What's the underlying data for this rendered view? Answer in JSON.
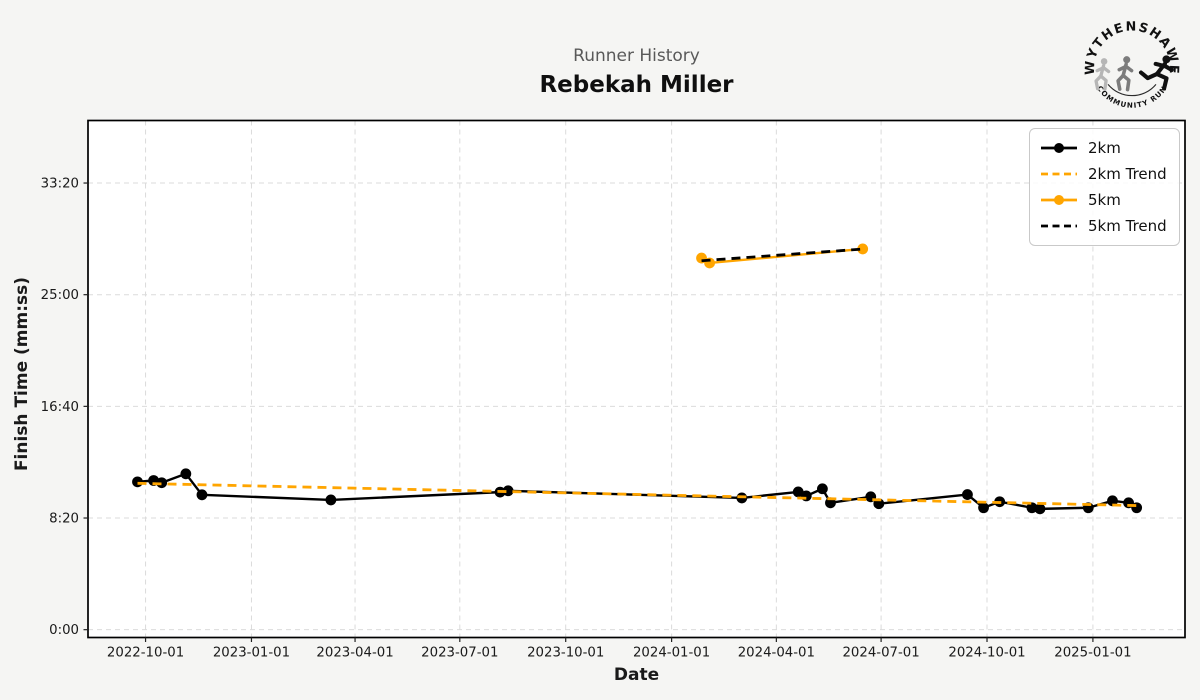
{
  "header": {
    "suptitle": "Runner History",
    "runner_name": "Rebekah Miller"
  },
  "logo": {
    "top_text": "WYTHENSHAWE",
    "bottom_text": "COMMUNITY RUN"
  },
  "colors": {
    "figure_bg": "#f5f5f3",
    "plot_bg": "#ffffff",
    "grid": "#dbdbdb",
    "spine": "#000000",
    "orange": "#FFA500",
    "black": "#000000",
    "suptitle_gray": "#595959"
  },
  "legend": {
    "items": [
      {
        "label": "2km",
        "color": "#000000",
        "dashed": false,
        "marker": true
      },
      {
        "label": "2km Trend",
        "color": "#FFA500",
        "dashed": true,
        "marker": false
      },
      {
        "label": "5km",
        "color": "#FFA500",
        "dashed": false,
        "marker": true
      },
      {
        "label": "5km Trend",
        "color": "#000000",
        "dashed": true,
        "marker": false
      }
    ]
  },
  "chart_data": {
    "type": "line",
    "title": "Runner History",
    "subtitle": "Rebekah Miller",
    "xlabel": "Date",
    "ylabel": "Finish Time (mm:ss)",
    "grid": true,
    "legend_position": "upper right",
    "xlim": [
      "2022-08-12",
      "2025-03-22"
    ],
    "ylim_seconds": [
      -35,
      2280
    ],
    "x_tick_labels": [
      "2022-10-01",
      "2023-01-01",
      "2023-04-01",
      "2023-07-01",
      "2023-10-01",
      "2024-01-01",
      "2024-04-01",
      "2024-07-01",
      "2024-10-01",
      "2025-01-01"
    ],
    "y_tick_seconds": [
      0,
      500,
      1000,
      1500,
      2000
    ],
    "y_tick_labels": [
      "0:00",
      "8:20",
      "16:40",
      "25:00",
      "33:20"
    ],
    "series": [
      {
        "name": "2km",
        "color": "#000000",
        "line": "solid",
        "marker": "circle",
        "points": [
          {
            "date": "2022-09-24",
            "time": "11:02"
          },
          {
            "date": "2022-10-08",
            "time": "11:08"
          },
          {
            "date": "2022-10-15",
            "time": "10:58"
          },
          {
            "date": "2022-11-05",
            "time": "11:38"
          },
          {
            "date": "2022-11-19",
            "time": "10:04"
          },
          {
            "date": "2023-03-11",
            "time": "9:41"
          },
          {
            "date": "2023-08-05",
            "time": "10:16"
          },
          {
            "date": "2023-08-12",
            "time": "10:22"
          },
          {
            "date": "2024-03-02",
            "time": "9:50"
          },
          {
            "date": "2024-04-20",
            "time": "10:17"
          },
          {
            "date": "2024-04-27",
            "time": "9:59"
          },
          {
            "date": "2024-05-11",
            "time": "10:31"
          },
          {
            "date": "2024-05-18",
            "time": "9:28"
          },
          {
            "date": "2024-06-22",
            "time": "9:55"
          },
          {
            "date": "2024-06-29",
            "time": "9:24"
          },
          {
            "date": "2024-09-14",
            "time": "10:05"
          },
          {
            "date": "2024-09-28",
            "time": "9:06"
          },
          {
            "date": "2024-10-12",
            "time": "9:33"
          },
          {
            "date": "2024-11-09",
            "time": "9:06"
          },
          {
            "date": "2024-11-16",
            "time": "9:01"
          },
          {
            "date": "2024-12-28",
            "time": "9:06"
          },
          {
            "date": "2025-01-18",
            "time": "9:37"
          },
          {
            "date": "2025-02-01",
            "time": "9:28"
          },
          {
            "date": "2025-02-08",
            "time": "9:06"
          }
        ]
      },
      {
        "name": "5km",
        "color": "#FFA500",
        "line": "solid",
        "marker": "circle",
        "points": [
          {
            "date": "2024-01-27",
            "time": "27:44"
          },
          {
            "date": "2024-02-03",
            "time": "27:22"
          },
          {
            "date": "2024-06-15",
            "time": "28:25"
          }
        ]
      }
    ],
    "trends": [
      {
        "name": "2km Trend",
        "of": "2km",
        "color": "#FFA500",
        "line": "dashed",
        "fit": "linear"
      },
      {
        "name": "5km Trend",
        "of": "5km",
        "color": "#000000",
        "line": "dashed",
        "fit": "linear"
      }
    ]
  }
}
